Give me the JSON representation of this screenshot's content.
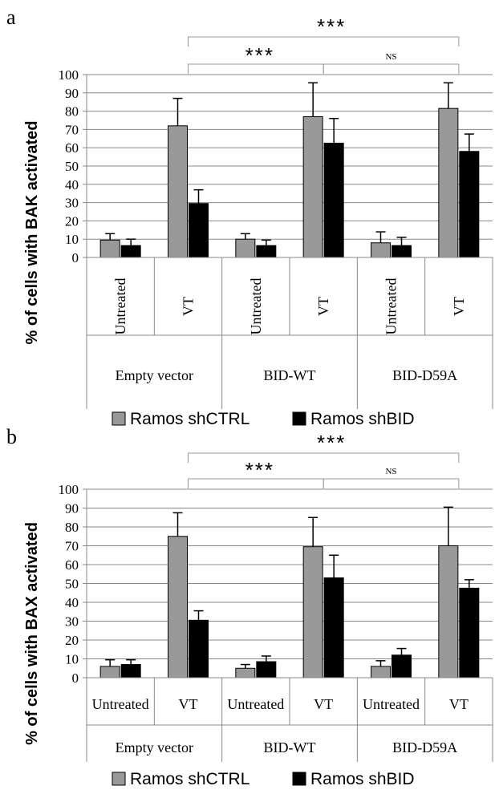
{
  "chart_data": [
    {
      "panel": "a",
      "type": "bar",
      "ylabel": "% of cells with BAK activated",
      "ylim": [
        0,
        100
      ],
      "yticks": [
        0,
        10,
        20,
        30,
        40,
        50,
        60,
        70,
        80,
        90,
        100
      ],
      "grid": true,
      "legend_position": "bottom",
      "category_groups": [
        "Empty vector",
        "BID-WT",
        "BID-D59A"
      ],
      "categories": [
        "Untreated",
        "VT",
        "Untreated",
        "VT",
        "Untreated",
        "VT"
      ],
      "series": [
        {
          "name": "Ramos shCTRL",
          "color": "#999999",
          "values": [
            9.5,
            72,
            10,
            77,
            8,
            81.5
          ],
          "errors": [
            3.5,
            15,
            3,
            18.5,
            6,
            14
          ]
        },
        {
          "name": "Ramos shBID",
          "color": "#000000",
          "values": [
            6.5,
            29.5,
            6.5,
            62.5,
            6.5,
            58
          ],
          "errors": [
            3.5,
            7.5,
            3,
            13.5,
            4.5,
            9.5
          ]
        }
      ],
      "significance": [
        {
          "label": "***",
          "from": "Empty vector VT",
          "to": "BID-D59A VT"
        },
        {
          "label": "***",
          "from": "Empty vector VT",
          "to": "BID-WT VT"
        },
        {
          "label": "NS",
          "from": "BID-WT VT",
          "to": "BID-D59A VT"
        }
      ]
    },
    {
      "panel": "b",
      "type": "bar",
      "ylabel": "% of cells with BAX activated",
      "ylim": [
        0,
        100
      ],
      "yticks": [
        0,
        10,
        20,
        30,
        40,
        50,
        60,
        70,
        80,
        90,
        100
      ],
      "grid": true,
      "legend_position": "bottom",
      "category_groups": [
        "Empty vector",
        "BID-WT",
        "BID-D59A"
      ],
      "categories": [
        "Untreated",
        "VT",
        "Untreated",
        "VT",
        "Untreated",
        "VT"
      ],
      "series": [
        {
          "name": "Ramos shCTRL",
          "color": "#999999",
          "values": [
            6,
            75,
            5,
            69.5,
            6,
            70
          ],
          "errors": [
            3.5,
            12.5,
            2,
            15.5,
            3,
            20.5
          ]
        },
        {
          "name": "Ramos shBID",
          "color": "#000000",
          "values": [
            7,
            30.5,
            8.5,
            53,
            12,
            47.5
          ],
          "errors": [
            2.5,
            5,
            3,
            12,
            3.5,
            4.5
          ]
        }
      ],
      "significance": [
        {
          "label": "***",
          "from": "Empty vector VT",
          "to": "BID-D59A VT"
        },
        {
          "label": "***",
          "from": "Empty vector VT",
          "to": "BID-WT VT"
        },
        {
          "label": "NS",
          "from": "BID-WT VT",
          "to": "BID-D59A VT"
        }
      ]
    }
  ]
}
